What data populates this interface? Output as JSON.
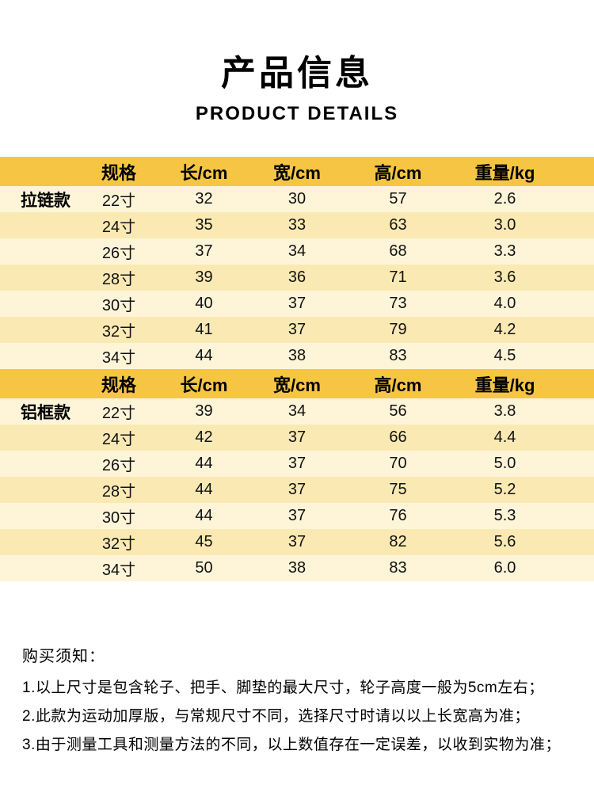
{
  "header": {
    "title": "产品信息",
    "subtitle": "PRODUCT DETAILS"
  },
  "colors": {
    "header_bg": "#F6C544",
    "row_light": "#FEF5D9",
    "row_dark": "#FBE9B3"
  },
  "tables": [
    {
      "category": "拉链款",
      "headers": [
        "规格",
        "长/cm",
        "宽/cm",
        "高/cm",
        "重量/kg"
      ],
      "rows": [
        [
          "22寸",
          "32",
          "30",
          "57",
          "2.6"
        ],
        [
          "24寸",
          "35",
          "33",
          "63",
          "3.0"
        ],
        [
          "26寸",
          "37",
          "34",
          "68",
          "3.3"
        ],
        [
          "28寸",
          "39",
          "36",
          "71",
          "3.6"
        ],
        [
          "30寸",
          "40",
          "37",
          "73",
          "4.0"
        ],
        [
          "32寸",
          "41",
          "37",
          "79",
          "4.2"
        ],
        [
          "34寸",
          "44",
          "38",
          "83",
          "4.5"
        ]
      ]
    },
    {
      "category": "铝框款",
      "headers": [
        "规格",
        "长/cm",
        "宽/cm",
        "高/cm",
        "重量/kg"
      ],
      "rows": [
        [
          "22寸",
          "39",
          "34",
          "56",
          "3.8"
        ],
        [
          "24寸",
          "42",
          "37",
          "66",
          "4.4"
        ],
        [
          "26寸",
          "44",
          "37",
          "70",
          "5.0"
        ],
        [
          "28寸",
          "44",
          "37",
          "75",
          "5.2"
        ],
        [
          "30寸",
          "44",
          "37",
          "76",
          "5.3"
        ],
        [
          "32寸",
          "45",
          "37",
          "82",
          "5.6"
        ],
        [
          "34寸",
          "50",
          "38",
          "83",
          "6.0"
        ]
      ]
    }
  ],
  "notes": {
    "title": "购买须知：",
    "items": [
      "1.以上尺寸是包含轮子、把手、脚垫的最大尺寸，轮子高度一般为5cm左右；",
      "2.此款为运动加厚版，与常规尺寸不同，选择尺寸时请以以上长宽高为准；",
      "3.由于测量工具和测量方法的不同，以上数值存在一定误差，以收到实物为准；"
    ]
  }
}
